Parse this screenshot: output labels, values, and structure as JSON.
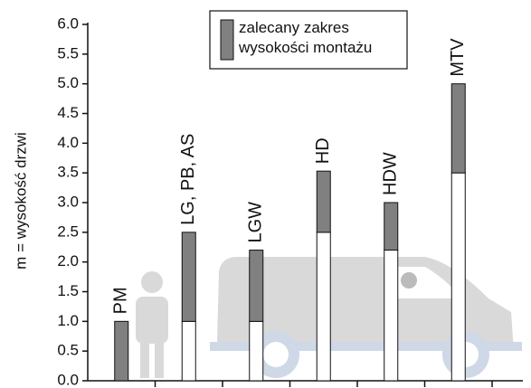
{
  "chart_data": {
    "type": "range-bar",
    "y_label": "m = wysokość drzwi",
    "categories": [
      "PM",
      "LG, PB, AS",
      "LGW",
      "HD",
      "HDW",
      "MTV"
    ],
    "series": [
      {
        "name": "zalecany zakres wysokości montażu",
        "color": "#808080",
        "low": [
          0,
          1.0,
          1.0,
          2.5,
          2.2,
          3.5
        ],
        "high": [
          1.0,
          2.5,
          2.2,
          3.53,
          3.0,
          5.0
        ]
      }
    ],
    "ylim": [
      0,
      6
    ],
    "yticks": [
      {
        "value": 0,
        "label": "0.0"
      },
      0.5,
      {
        "value": 1,
        "label": "1.0"
      },
      1.5,
      {
        "value": 2,
        "label": "2.0"
      },
      2.5,
      {
        "value": 3,
        "label": "3.0"
      },
      3.5,
      {
        "value": 4,
        "label": "4.0"
      },
      4.5,
      {
        "value": 5,
        "label": "5.0"
      },
      5.5,
      {
        "value": 6,
        "label": "6.0"
      }
    ]
  }
}
